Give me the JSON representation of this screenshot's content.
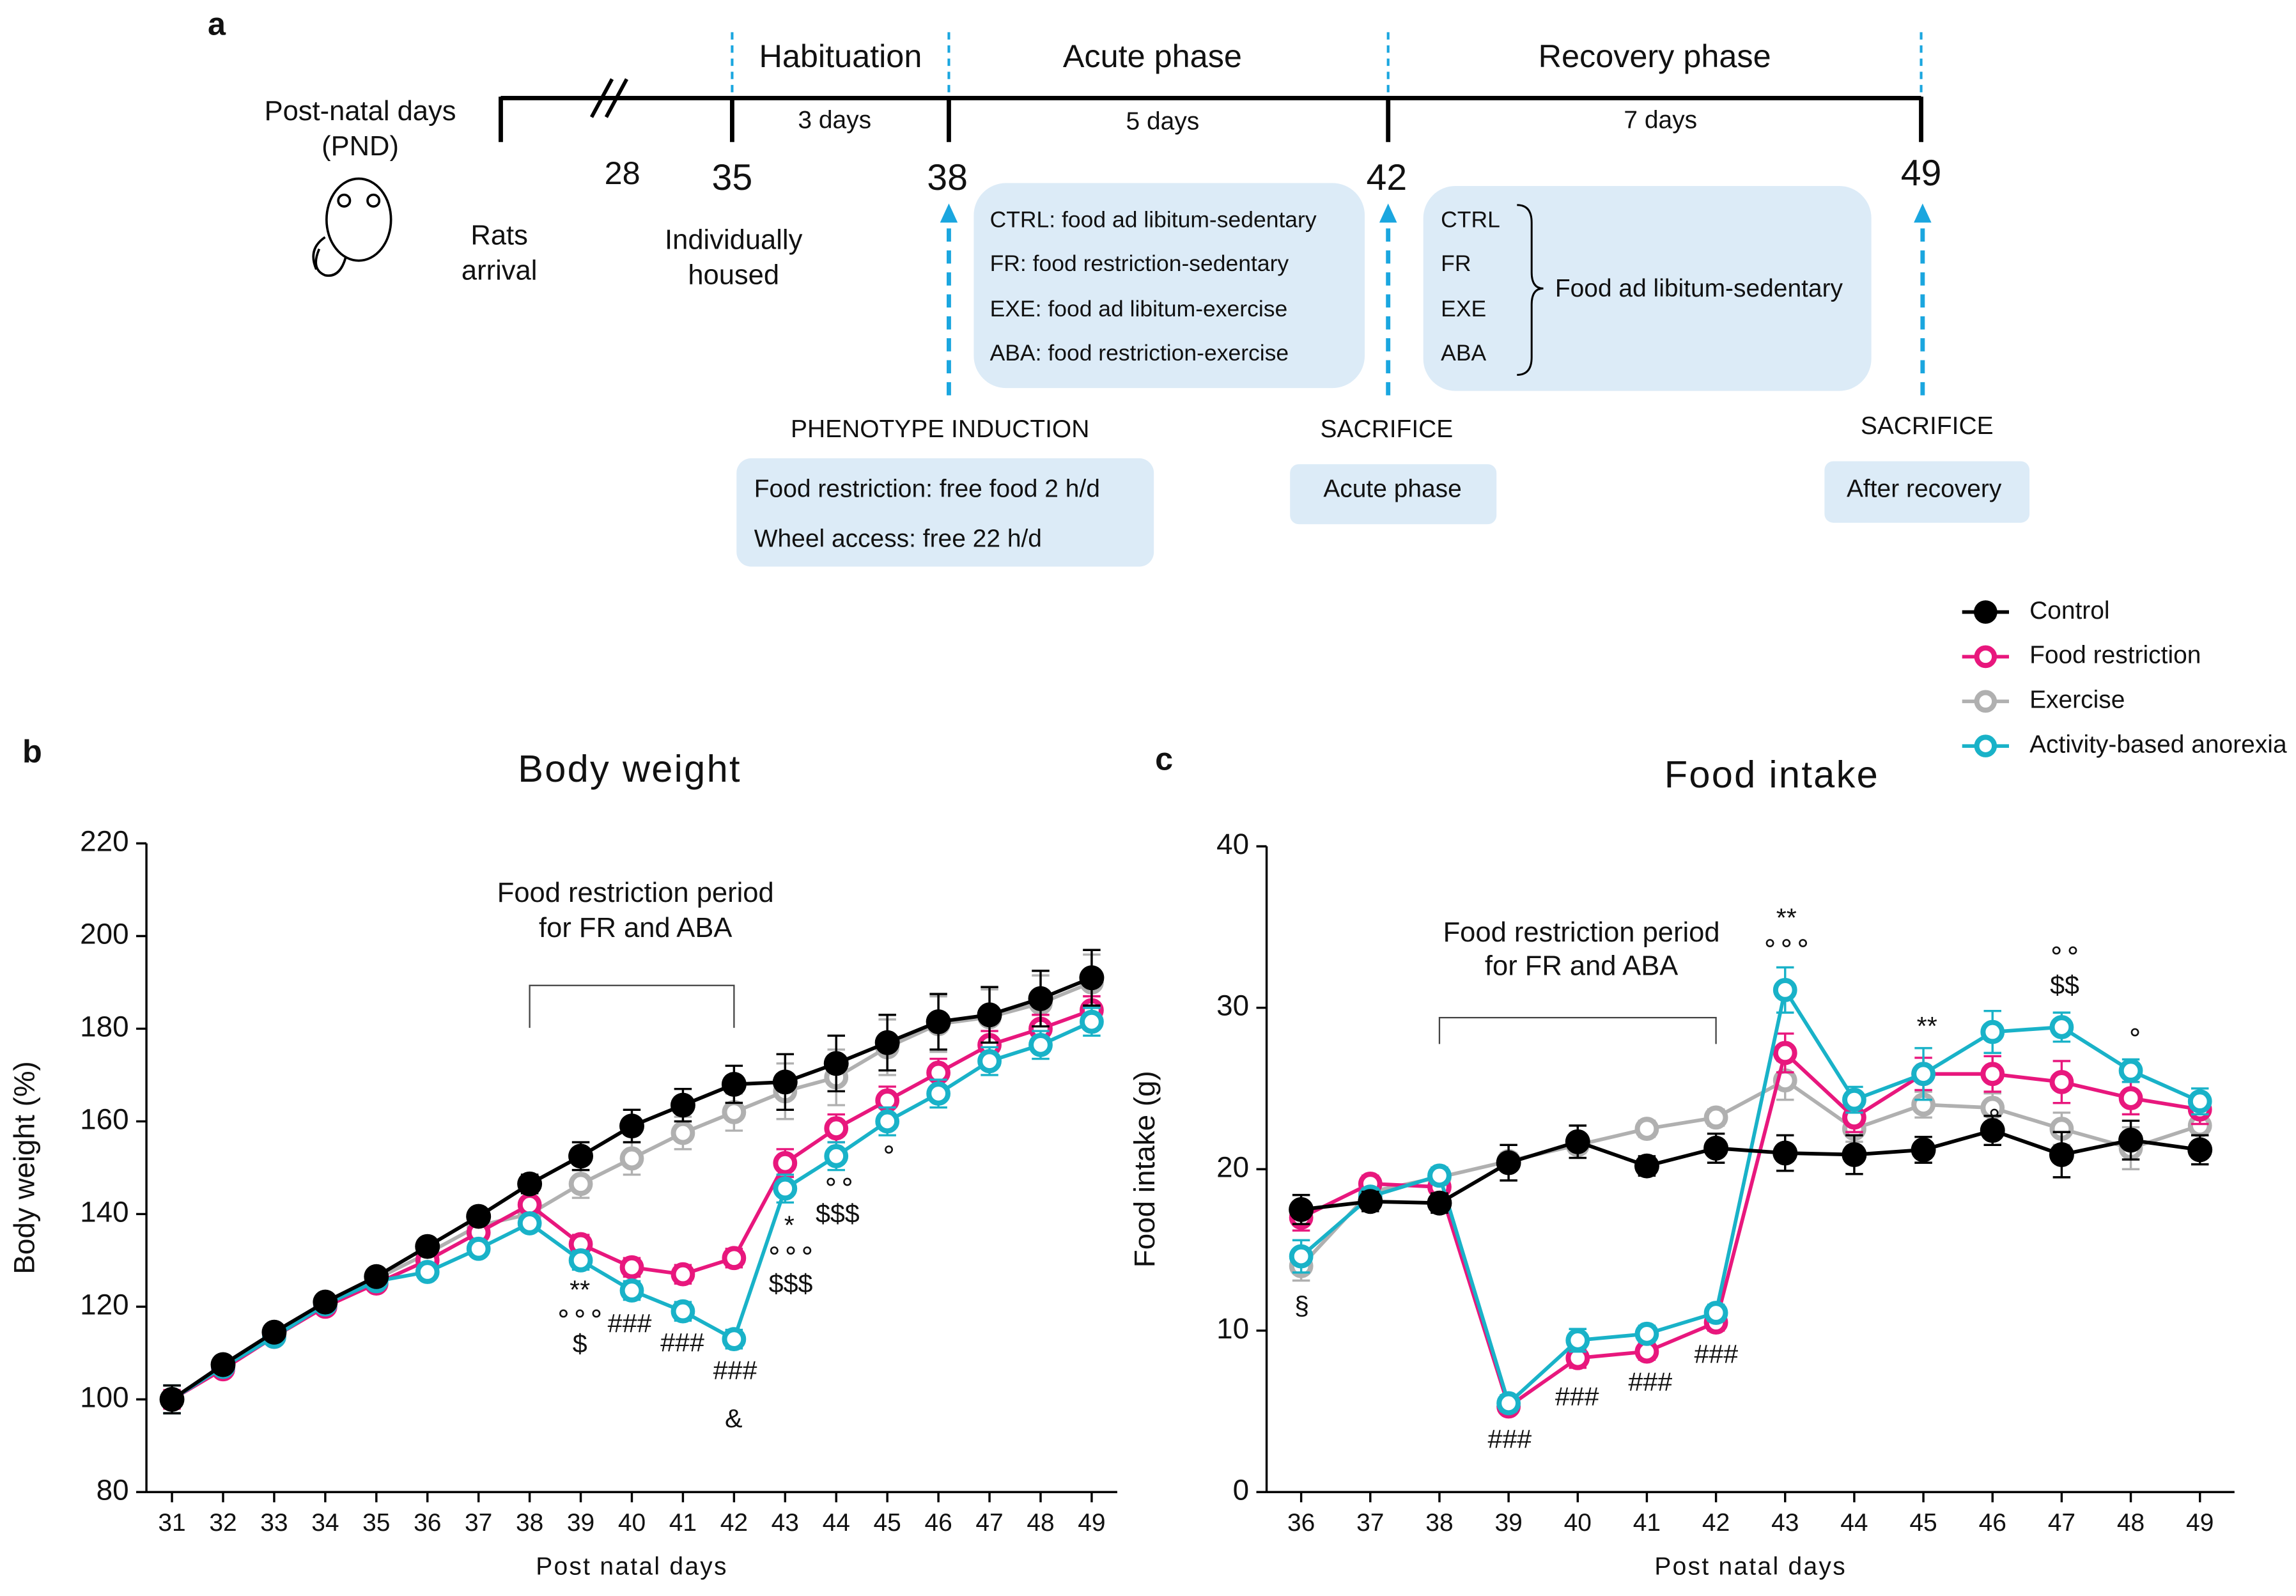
{
  "panel_labels": [
    "a",
    "b",
    "c"
  ],
  "timeline": {
    "axis_label": [
      "Post-natal days",
      "(PND)"
    ],
    "days": [
      "28",
      "35",
      "38",
      "42",
      "49"
    ],
    "phases": [
      {
        "name": "Habituation",
        "duration": "3 days"
      },
      {
        "name": "Acute phase",
        "duration": "5 days"
      },
      {
        "name": "Recovery phase",
        "duration": "7 days"
      }
    ],
    "arrival": [
      "Rats",
      "arrival"
    ],
    "housed": [
      "Individually",
      "housed"
    ],
    "acute_groups": [
      "CTRL: food ad libitum-sedentary",
      "FR: food restriction-sedentary",
      "EXE: food ad libitum-exercise",
      "ABA: food restriction-exercise"
    ],
    "recovery_groups": [
      "CTRL",
      "FR",
      "EXE",
      "ABA"
    ],
    "recovery_condition": "Food ad libitum-sedentary",
    "induction": {
      "title": "PHENOTYPE INDUCTION",
      "lines": [
        "Food restriction: free food 2 h/d",
        "Wheel access: free 22 h/d"
      ]
    },
    "sacrifice": [
      {
        "title": "SACRIFICE",
        "label": "Acute phase"
      },
      {
        "title": "SACRIFICE",
        "label": "After recovery"
      }
    ]
  },
  "chart_data": [
    {
      "type": "line",
      "title": "Body weight",
      "x_label": "Post natal days",
      "y_label": "Body weight (%)",
      "note": [
        "Food restriction period",
        "for FR and ABA"
      ],
      "x": [
        31,
        32,
        33,
        34,
        35,
        36,
        37,
        38,
        39,
        40,
        41,
        42,
        43,
        44,
        45,
        46,
        47,
        48,
        49
      ],
      "xlim": [
        30.5,
        49.5
      ],
      "xticks": [
        31,
        32,
        33,
        34,
        35,
        36,
        37,
        38,
        39,
        40,
        41,
        42,
        43,
        44,
        45,
        46,
        47,
        48,
        49
      ],
      "ylim": [
        80,
        220
      ],
      "yticks": [
        80,
        100,
        120,
        140,
        160,
        180,
        200,
        220
      ],
      "series": [
        {
          "color": "#000000",
          "filled": true,
          "values": [
            100,
            107.5,
            114.5,
            121,
            126.5,
            133,
            139.5,
            146.5,
            152.5,
            159,
            163.5,
            168,
            168.5,
            172.5,
            177,
            181.5,
            183,
            186.5,
            191
          ],
          "errors": [
            3,
            1,
            1,
            1,
            1,
            1.5,
            1.5,
            2,
            3,
            3.5,
            3.5,
            4,
            6,
            6,
            6,
            6,
            6,
            6,
            6
          ]
        },
        {
          "color": "#e8177d",
          "filled": false,
          "values": [
            100,
            106.5,
            113.5,
            120,
            125,
            130,
            136,
            142,
            133.5,
            128.5,
            127,
            130.5,
            151,
            158.5,
            164.5,
            170.5,
            176.5,
            180,
            184
          ],
          "errors": [
            2,
            1,
            1,
            1,
            1,
            1,
            1.5,
            1.5,
            2,
            2,
            2,
            2,
            3,
            3,
            3,
            3,
            3,
            3,
            3
          ]
        },
        {
          "color": "#b0b0b0",
          "filled": false,
          "values": [
            100,
            107,
            114,
            120.5,
            126,
            131.5,
            137.5,
            140,
            146.5,
            152,
            157.5,
            162,
            166.5,
            169.5,
            176,
            181,
            182.5,
            185.5,
            190
          ],
          "errors": [
            3,
            1,
            1,
            1,
            1,
            1.5,
            1.5,
            2,
            3,
            3.5,
            3.5,
            4,
            6,
            6,
            6,
            6,
            6,
            6,
            6
          ]
        },
        {
          "color": "#19b2c8",
          "filled": false,
          "values": [
            100,
            107,
            113.5,
            120.5,
            125.5,
            127.5,
            132.5,
            138,
            130,
            123.5,
            119,
            113,
            145.5,
            152.5,
            160,
            166,
            173,
            176.5,
            181.5
          ],
          "errors": [
            3,
            1,
            1,
            1,
            1,
            1,
            1.5,
            1.5,
            2,
            2,
            2,
            2,
            3,
            3,
            3,
            3,
            3,
            3,
            3
          ]
        }
      ],
      "annotations": [
        "**",
        "∘∘∘",
        "$",
        "###",
        "###",
        "###",
        "&",
        "*",
        "∘∘∘",
        "$$$",
        "∘∘",
        "$$$",
        "∘"
      ]
    },
    {
      "type": "line",
      "title": "Food intake",
      "x_label": "Post natal days",
      "y_label": "Food intake (g)",
      "note": [
        "Food restriction period",
        "for FR and ABA"
      ],
      "x": [
        36,
        37,
        38,
        39,
        40,
        41,
        42,
        43,
        44,
        45,
        46,
        47,
        48,
        49
      ],
      "xlim": [
        35.5,
        49.5
      ],
      "xticks": [
        36,
        37,
        38,
        39,
        40,
        41,
        42,
        43,
        44,
        45,
        46,
        47,
        48,
        49
      ],
      "ylim": [
        0,
        40
      ],
      "yticks": [
        0,
        10,
        20,
        30,
        40
      ],
      "series": [
        {
          "name": "Control",
          "color": "#000000",
          "filled": true,
          "values": [
            17.5,
            18,
            17.9,
            20.4,
            21.7,
            20.2,
            21.3,
            21,
            20.9,
            21.2,
            22.4,
            20.9,
            21.8,
            21.2
          ],
          "errors": [
            0.9,
            0.6,
            0.6,
            1.1,
            1,
            0.6,
            0.9,
            1.1,
            1.2,
            0.8,
            0.9,
            1.4,
            1.2,
            0.9
          ]
        },
        {
          "name": "Food restriction",
          "color": "#e8177d",
          "filled": false,
          "values": [
            17,
            19.1,
            18.9,
            5.3,
            8.3,
            8.7,
            10.5,
            27.2,
            23.2,
            25.9,
            25.9,
            25.4,
            24.4,
            23.7
          ],
          "errors": [
            0.8,
            0.5,
            0.5,
            0.4,
            0.6,
            0.5,
            0.5,
            1.2,
            0.9,
            1,
            1.1,
            1.3,
            1,
            0.9
          ]
        },
        {
          "name": "Exercise",
          "color": "#b0b0b0",
          "filled": false,
          "values": [
            14,
            18.6,
            19.5,
            20.5,
            21.5,
            22.5,
            23.2,
            25.5,
            22.5,
            24,
            23.8,
            22.5,
            21.3,
            22.7
          ],
          "errors": [
            0.9,
            0.5,
            0.5,
            0.5,
            0.5,
            0.5,
            0.5,
            1.2,
            0.8,
            0.8,
            0.9,
            1,
            1.3,
            1
          ]
        },
        {
          "name": "Activity-based anorexia",
          "color": "#19b2c8",
          "filled": false,
          "values": [
            14.6,
            18.3,
            19.6,
            5.5,
            9.4,
            9.8,
            11.1,
            31.1,
            24.3,
            25.9,
            28.5,
            28.8,
            26.1,
            24.2
          ],
          "errors": [
            1,
            0.5,
            0.5,
            0.5,
            0.7,
            0.5,
            0.5,
            1.4,
            0.8,
            1.6,
            1.3,
            0.9,
            0.7,
            0.8
          ]
        }
      ],
      "legend": "top-right",
      "annotations": [
        "§",
        "###",
        "###",
        "###",
        "###",
        "**",
        "∘∘∘",
        "**",
        "∘",
        "∘∘",
        "$$",
        "∘"
      ]
    }
  ]
}
